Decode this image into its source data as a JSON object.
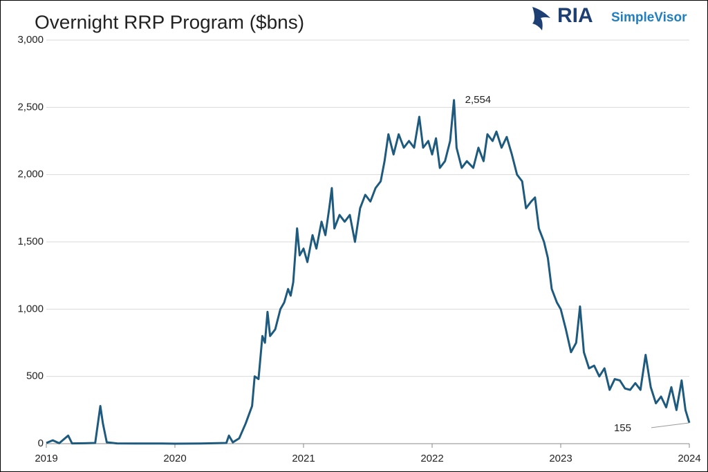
{
  "chart_data": {
    "type": "line",
    "title": "Overnight RRP Program ($bns)",
    "brand": [
      "RIA",
      "SimpleVisor"
    ],
    "color": "#1d5a7e",
    "grid": true,
    "xlim": [
      2019,
      2024
    ],
    "xticks": [
      2019,
      2020,
      2021,
      2022,
      2023,
      2024
    ],
    "ylim": [
      0,
      3000
    ],
    "yticks": [
      0,
      500,
      {
        "value": 1000,
        "label": "1,000"
      },
      {
        "value": 1500,
        "label": "1,500"
      },
      {
        "value": 2000,
        "label": "2,000"
      },
      {
        "value": 2500,
        "label": "2,500"
      },
      {
        "value": 3000,
        "label": "3,000"
      }
    ],
    "x": [
      2019.0,
      2019.05,
      2019.1,
      2019.17,
      2019.2,
      2019.3,
      2019.38,
      2019.42,
      2019.44,
      2019.47,
      2019.55,
      2019.7,
      2019.9,
      2020.0,
      2020.2,
      2020.4,
      2020.42,
      2020.45,
      2020.5,
      2020.55,
      2020.6,
      2020.62,
      2020.65,
      2020.68,
      2020.7,
      2020.72,
      2020.74,
      2020.78,
      2020.82,
      2020.85,
      2020.88,
      2020.9,
      2020.92,
      2020.95,
      2020.97,
      2021.0,
      2021.03,
      2021.07,
      2021.1,
      2021.14,
      2021.17,
      2021.2,
      2021.22,
      2021.24,
      2021.28,
      2021.32,
      2021.36,
      2021.4,
      2021.44,
      2021.48,
      2021.52,
      2021.56,
      2021.6,
      2021.63,
      2021.66,
      2021.7,
      2021.74,
      2021.78,
      2021.82,
      2021.86,
      2021.9,
      2021.93,
      2021.97,
      2022.0,
      2022.03,
      2022.06,
      2022.1,
      2022.14,
      2022.17,
      2022.19,
      2022.23,
      2022.27,
      2022.32,
      2022.36,
      2022.4,
      2022.43,
      2022.47,
      2022.5,
      2022.54,
      2022.58,
      2022.62,
      2022.66,
      2022.7,
      2022.73,
      2022.77,
      2022.8,
      2022.83,
      2022.87,
      2022.9,
      2022.93,
      2022.97,
      2023.0,
      2023.04,
      2023.08,
      2023.12,
      2023.15,
      2023.18,
      2023.22,
      2023.26,
      2023.3,
      2023.34,
      2023.38,
      2023.42,
      2023.46,
      2023.5,
      2023.54,
      2023.58,
      2023.62,
      2023.66,
      2023.7,
      2023.74,
      2023.78,
      2023.82,
      2023.86,
      2023.9,
      2023.94,
      2023.97,
      2024.0
    ],
    "series": [
      {
        "name": "Overnight RRP",
        "values": [
          5,
          25,
          3,
          60,
          2,
          3,
          5,
          280,
          150,
          10,
          2,
          1,
          1,
          0,
          1,
          5,
          60,
          10,
          40,
          150,
          280,
          500,
          480,
          800,
          750,
          980,
          800,
          850,
          1000,
          1050,
          1150,
          1100,
          1200,
          1600,
          1400,
          1450,
          1350,
          1550,
          1450,
          1650,
          1550,
          1750,
          1900,
          1600,
          1700,
          1650,
          1700,
          1500,
          1750,
          1850,
          1800,
          1900,
          1950,
          2100,
          2300,
          2150,
          2300,
          2200,
          2250,
          2200,
          2430,
          2200,
          2250,
          2150,
          2270,
          2050,
          2100,
          2250,
          2554,
          2200,
          2050,
          2100,
          2050,
          2200,
          2100,
          2300,
          2250,
          2320,
          2200,
          2280,
          2150,
          2000,
          1950,
          1750,
          1800,
          1830,
          1600,
          1500,
          1380,
          1150,
          1050,
          1000,
          850,
          680,
          750,
          1020,
          680,
          560,
          580,
          500,
          560,
          400,
          480,
          470,
          410,
          400,
          450,
          400,
          660,
          420,
          300,
          350,
          270,
          420,
          250,
          470,
          250,
          155
        ]
      }
    ],
    "annotations": [
      {
        "text": "2,554",
        "x": 2022.17,
        "y": 2554
      },
      {
        "text": "155",
        "x": 2024.0,
        "y": 155
      }
    ]
  }
}
